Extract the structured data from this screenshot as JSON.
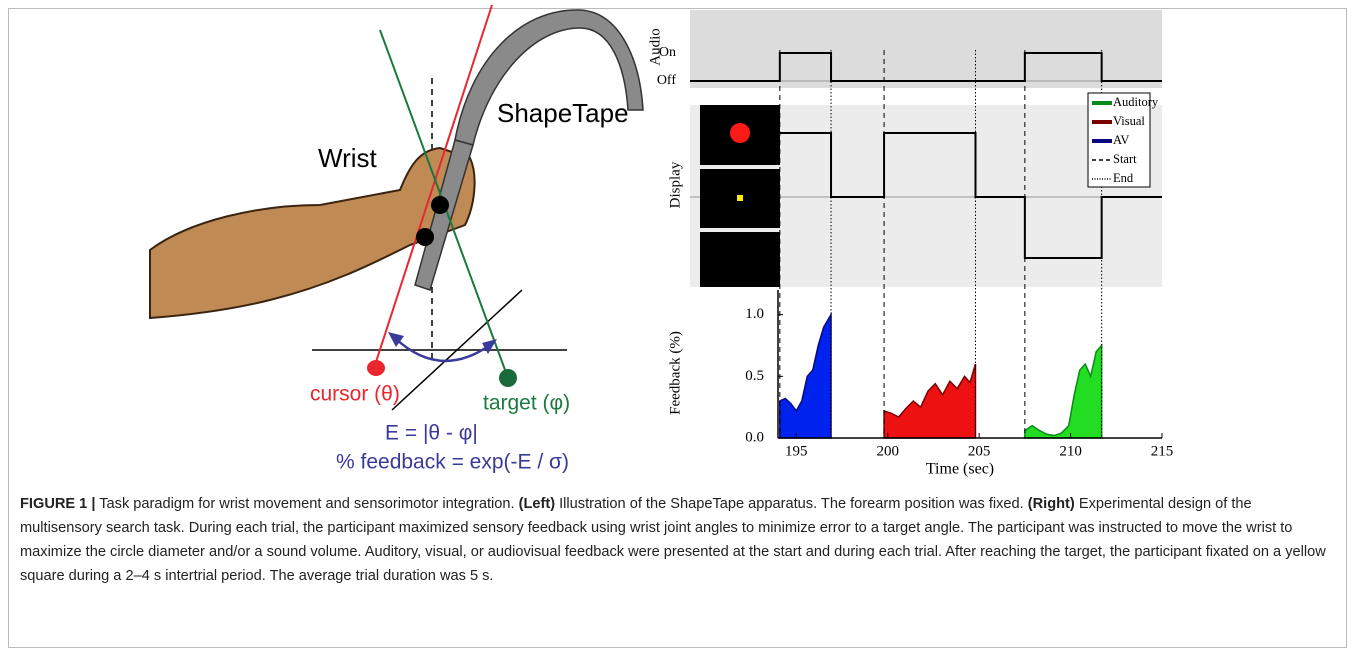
{
  "illustration": {
    "shapetape": "ShapeTape",
    "wrist": "Wrist",
    "cursor": "cursor (θ)",
    "target": "target (φ)",
    "error": "E = |θ - φ|",
    "feedback": "% feedback = exp(-E / σ)"
  },
  "chart_data": {
    "type": "area",
    "panels": {
      "audio": "Audio",
      "display": "Display"
    },
    "audio_levels": [
      "On",
      "Off"
    ],
    "ylabel": "Feedback (%)",
    "xlabel": "Time (sec)",
    "xlim": [
      194,
      215
    ],
    "xticks": [
      195,
      200,
      205,
      210,
      215
    ],
    "ylim": [
      0,
      1.2
    ],
    "yticks": [
      {
        "value": 0,
        "label": "0.0"
      },
      0.5,
      {
        "value": 1,
        "label": "1.0"
      }
    ],
    "series": [
      {
        "name": "Auditory",
        "color": "#0a8a1a",
        "fill": "#22dd22",
        "x": [
          207.5,
          207.9,
          208.3,
          208.7,
          209.1,
          209.5,
          209.9,
          210.2,
          210.5,
          210.8,
          211.1,
          211.4,
          211.7
        ],
        "values": [
          0.06,
          0.1,
          0.06,
          0.03,
          0.02,
          0.04,
          0.1,
          0.35,
          0.55,
          0.6,
          0.5,
          0.7,
          0.75
        ]
      },
      {
        "name": "Visual",
        "color": "#7a0000",
        "fill": "#ee1111",
        "x": [
          199.8,
          200.2,
          200.6,
          201.0,
          201.4,
          201.8,
          202.2,
          202.6,
          203.0,
          203.4,
          203.8,
          204.2,
          204.5,
          204.8
        ],
        "values": [
          0.22,
          0.2,
          0.17,
          0.24,
          0.3,
          0.25,
          0.38,
          0.44,
          0.35,
          0.46,
          0.4,
          0.5,
          0.45,
          0.6
        ]
      },
      {
        "name": "AV",
        "color": "#0a0a80",
        "fill": "#0022ee",
        "x": [
          194.1,
          194.4,
          194.7,
          195.0,
          195.3,
          195.6,
          195.9,
          196.2,
          196.5,
          196.9
        ],
        "values": [
          0.3,
          0.32,
          0.28,
          0.22,
          0.3,
          0.5,
          0.55,
          0.75,
          0.9,
          1.0
        ]
      }
    ],
    "legend_extra": [
      {
        "name": "Start",
        "style": "dashed"
      },
      {
        "name": "End",
        "style": "dotted"
      }
    ]
  },
  "caption": {
    "runs": [
      {
        "text": "FIGURE 1 |",
        "bold": true
      },
      {
        "text": " Task paradigm for wrist movement and sensorimotor integration. ",
        "bold": false
      },
      {
        "text": "(Left)",
        "bold": true
      },
      {
        "text": " Illustration of the ShapeTape apparatus. The forearm position was fixed. ",
        "bold": false
      },
      {
        "text": "(Right)",
        "bold": true
      },
      {
        "text": " Experimental design of the multisensory search task. During each trial, the participant maximized sensory feedback using wrist joint angles to minimize error to a target angle. The participant was instructed to move the wrist to maximize the circle diameter and/or a sound volume. Auditory, visual, or audiovisual feedback were presented at the start and during each trial. After reaching the target, the participant fixated on a yellow square during a 2–4 s intertrial period. The average trial duration was 5 s.",
        "bold": false
      }
    ]
  }
}
